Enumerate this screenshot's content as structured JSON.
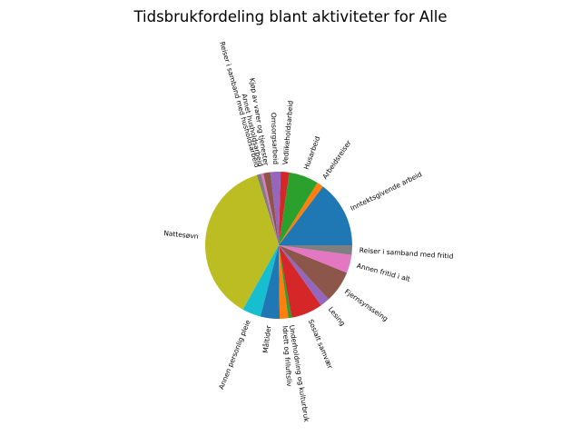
{
  "chart_data": {
    "type": "pie",
    "title": "Tidsbrukfordeling blant aktiviteter for Alle",
    "start_angle_deg": 0,
    "direction": "counterclockwise",
    "labels": [
      "Inntektsgivende arbeid",
      "Arbeidsreiser",
      "Husarbeid",
      "Vedlikeholdsarbeid",
      "Omsorgsarbeid",
      "Kjøp av varer og tjenester",
      "Annet husholdsarbeid",
      "Reiser i samband med husholdsarbeid",
      "Nattesøvn",
      "Annen personlig pleie",
      "Måltider",
      "Idrett og friluftsliv",
      "Underholdning og kulturbruk",
      "Sosialt samvær",
      "Lesing",
      "Fjernsynsseing",
      "Annen fritid i alt",
      "Reiser i samband med fritid"
    ],
    "values": [
      14.0,
      1.4,
      6.2,
      1.8,
      2.1,
      1.5,
      0.5,
      0.9,
      35.3,
      3.9,
      4.0,
      1.8,
      0.7,
      6.6,
      2.0,
      6.7,
      3.8,
      2.0
    ],
    "colors": [
      "#1f77b4",
      "#ff7f0e",
      "#2ca02c",
      "#d62728",
      "#9467bd",
      "#8c564b",
      "#e377c2",
      "#7f7f7f",
      "#bcbd22",
      "#17becf",
      "#1f77b4",
      "#ff7f0e",
      "#2ca02c",
      "#d62728",
      "#9467bd",
      "#8c564b",
      "#e377c2",
      "#7f7f7f"
    ]
  }
}
